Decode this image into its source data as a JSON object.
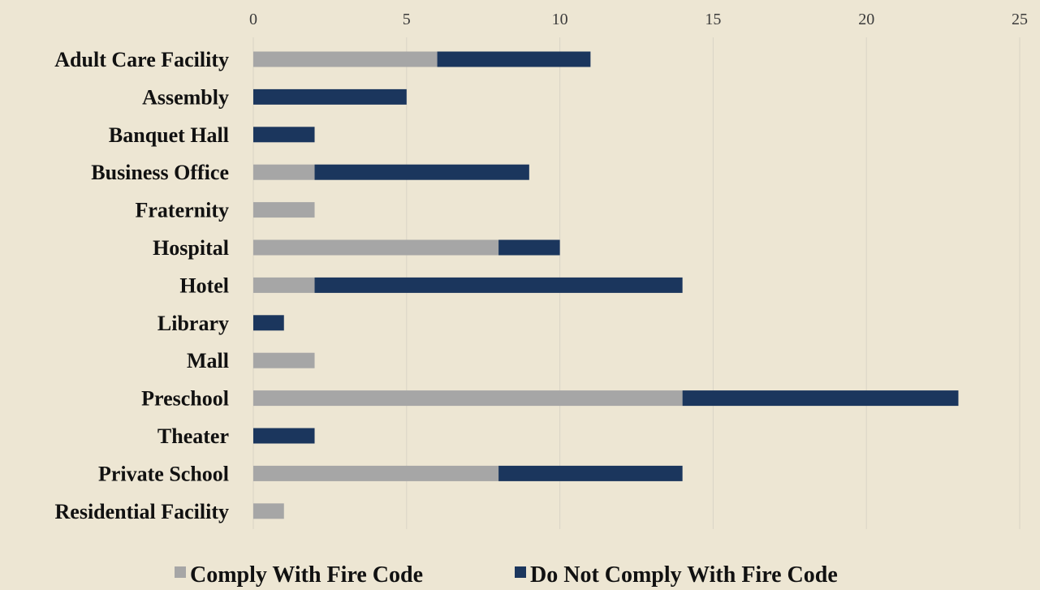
{
  "chart_data": {
    "type": "bar",
    "orientation": "horizontal",
    "stacked": true,
    "categories": [
      "Adult Care Facility",
      "Assembly",
      "Banquet Hall",
      "Business Office",
      "Fraternity",
      "Hospital",
      "Hotel",
      "Library",
      "Mall",
      "Preschool",
      "Theater",
      "Private School",
      "Residential Facility"
    ],
    "series": [
      {
        "name": "Comply With Fire Code",
        "color": "#a6a6a6",
        "values": [
          6,
          0,
          0,
          2,
          2,
          8,
          2,
          0,
          2,
          14,
          0,
          8,
          1
        ]
      },
      {
        "name": "Do Not Comply With Fire Code",
        "color": "#1b365d",
        "values": [
          5,
          5,
          2,
          7,
          0,
          2,
          12,
          1,
          0,
          9,
          2,
          6,
          0
        ]
      }
    ],
    "xlim": [
      0,
      25
    ],
    "xticks": [
      "0",
      "5",
      "10",
      "15",
      "20",
      "25"
    ],
    "x_axis_position": "top",
    "grid": true,
    "legend_position": "bottom",
    "title": "",
    "xlabel": "",
    "ylabel": ""
  },
  "colors": {
    "background": "#ede6d3",
    "gridline": "#d9d4c6"
  }
}
